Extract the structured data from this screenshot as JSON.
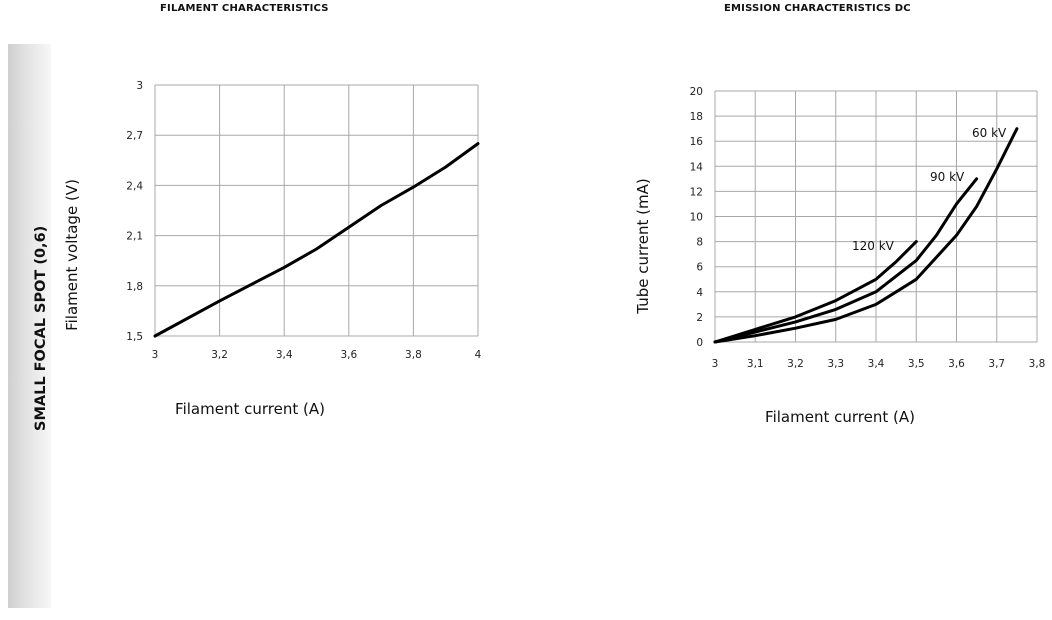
{
  "side_label": "SMALL FOCAL SPOT (0,6)",
  "chart_data": [
    {
      "type": "line",
      "title": "FILAMENT CHARACTERISTICS",
      "xlabel": "Filament current (A)",
      "ylabel": "Filament voltage (V)",
      "xlim": [
        3,
        4
      ],
      "ylim": [
        1.5,
        3
      ],
      "x_ticks": [
        "3",
        "3,2",
        "3,4",
        "3,6",
        "3,8",
        "4"
      ],
      "y_ticks": [
        "1,5",
        "1,8",
        "2,1",
        "2,4",
        "2,7",
        "3"
      ],
      "grid": true,
      "series": [
        {
          "x": [
            3.0,
            3.2,
            3.4,
            3.5,
            3.6,
            3.7,
            3.8,
            3.9,
            4.0
          ],
          "y": [
            1.5,
            1.71,
            1.91,
            2.02,
            2.15,
            2.28,
            2.39,
            2.51,
            2.65
          ]
        }
      ]
    },
    {
      "type": "line",
      "title": "EMISSION CHARACTERISTICS DC",
      "xlabel": "Filament current (A)",
      "ylabel": "Tube current (mA)",
      "xlim": [
        3,
        3.8
      ],
      "ylim": [
        0,
        20
      ],
      "x_ticks": [
        "3",
        "3,1",
        "3,2",
        "3,3",
        "3,4",
        "3,5",
        "3,6",
        "3,7",
        "3,8"
      ],
      "y_ticks": [
        "0",
        "2",
        "4",
        "6",
        "8",
        "10",
        "12",
        "14",
        "16",
        "18",
        "20"
      ],
      "grid": true,
      "series": [
        {
          "name": "120 kV",
          "x": [
            3.0,
            3.1,
            3.2,
            3.3,
            3.4,
            3.45,
            3.5
          ],
          "y": [
            0,
            1.0,
            2.0,
            3.3,
            5.0,
            6.4,
            8.0
          ]
        },
        {
          "name": "90 kV",
          "x": [
            3.0,
            3.1,
            3.2,
            3.3,
            3.4,
            3.5,
            3.55,
            3.6,
            3.65
          ],
          "y": [
            0,
            0.8,
            1.6,
            2.6,
            4.0,
            6.5,
            8.5,
            11.0,
            13.0
          ]
        },
        {
          "name": "60 kV",
          "x": [
            3.0,
            3.1,
            3.2,
            3.3,
            3.4,
            3.5,
            3.6,
            3.65,
            3.7,
            3.75
          ],
          "y": [
            0,
            0.5,
            1.1,
            1.8,
            3.0,
            5.0,
            8.5,
            10.8,
            13.8,
            17.0
          ]
        }
      ]
    }
  ]
}
